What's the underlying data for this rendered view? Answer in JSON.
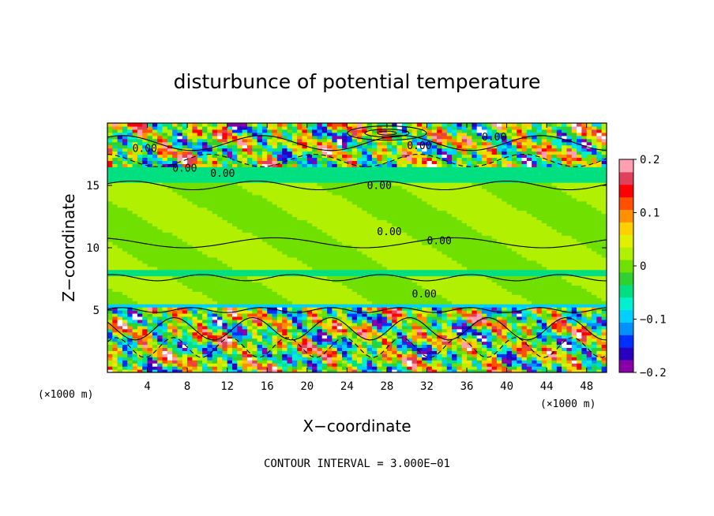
{
  "chart_data": {
    "type": "heatmap",
    "title": "disturbunce of potential temperature",
    "xlabel": "X−coordinate",
    "ylabel": "Z−coordinate",
    "x_unit_label": "(×1000 m)",
    "x_unit_label_right": "(×1000 m)",
    "xlim": [
      0,
      50
    ],
    "ylim": [
      0,
      20
    ],
    "x_ticks": [
      4,
      8,
      12,
      16,
      20,
      24,
      28,
      32,
      36,
      40,
      44,
      48
    ],
    "x_tick_labels": [
      "4",
      "8",
      "12",
      "16",
      "20",
      "24",
      "28",
      "32",
      "36",
      "40",
      "44",
      "48"
    ],
    "y_ticks": [
      5,
      10,
      15
    ],
    "y_tick_labels": [
      "5",
      "10",
      "15"
    ],
    "colorbar": {
      "min": -0.2,
      "max": 0.2,
      "tick_values": [
        0.2,
        0.1,
        0,
        -0.1,
        -0.2
      ],
      "tick_labels": [
        "0.2",
        "0.1",
        "0",
        "−0.1",
        "−0.2"
      ],
      "colors": [
        "#8a00a8",
        "#2a00c0",
        "#0030ff",
        "#0090ff",
        "#00d0ff",
        "#00f0d0",
        "#00e080",
        "#30d030",
        "#70e000",
        "#b0f000",
        "#e0f000",
        "#ffd000",
        "#ff9000",
        "#ff5000",
        "#ff0000",
        "#e0405a",
        "#ffa0b0"
      ]
    },
    "contour_labels": [
      "0.00",
      "0.00",
      "0.00",
      "0.00",
      "0.00",
      "0.00",
      "0.00",
      "0.00",
      "0.00"
    ],
    "contour_interval_text": "CONTOUR INTERVAL = 3.000E−01",
    "bands": [
      {
        "z0": 0,
        "z1": 5.2,
        "pattern": "turbulent"
      },
      {
        "z0": 5.2,
        "z1": 5.6,
        "pattern": "blue-line"
      },
      {
        "z0": 5.6,
        "z1": 7.8,
        "pattern": "green"
      },
      {
        "z0": 7.8,
        "z1": 8.2,
        "pattern": "cyan-line"
      },
      {
        "z0": 8.2,
        "z1": 15.2,
        "pattern": "green"
      },
      {
        "z0": 15.2,
        "z1": 16.4,
        "pattern": "cyan"
      },
      {
        "z0": 16.4,
        "z1": 20,
        "pattern": "turbulent"
      }
    ]
  }
}
